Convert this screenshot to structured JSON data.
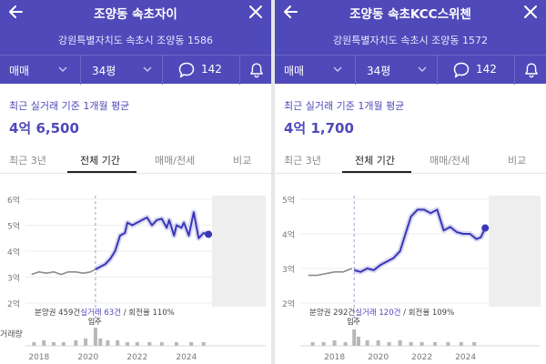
{
  "panels": [
    {
      "title": "조양동 속초자이",
      "address": "강원특별자치도 속초시 조양동 1586",
      "deal_type": "매매",
      "size": "34평",
      "comment_count": "142",
      "avg_label": "최근 실거래 기준 1개월 평균",
      "avg_price": "4억 6,500",
      "tabs": [
        "최근 3년",
        "전체 기간",
        "매매/전세",
        "비교"
      ],
      "active_tab": "전체 기간",
      "info_text": {
        "pre": "분양권 459건",
        "link": "실거래 63건",
        "post": " / 회전율 110%"
      },
      "move_in_label": "입주",
      "volume_label": "거래량",
      "chart_data": {
        "type": "line",
        "y_ticks": [
          "6억",
          "5억",
          "4억",
          "3억",
          "2억"
        ],
        "ylim": [
          2,
          6
        ],
        "x_ticks": [
          "2018",
          "2020",
          "2022",
          "2024"
        ],
        "xlim": [
          2017.6,
          2025.6
        ],
        "move_in_year": 2020.3,
        "series": [
          {
            "role": "pre_sale",
            "color": "#8c8c8c",
            "x": [
              2017.7,
              2018.0,
              2018.3,
              2018.6,
              2018.9,
              2019.2,
              2019.5,
              2019.8,
              2020.1,
              2020.3
            ],
            "y": [
              3.1,
              3.2,
              3.15,
              3.2,
              3.1,
              3.2,
              3.2,
              3.15,
              3.2,
              3.3
            ]
          },
          {
            "role": "transaction",
            "color": "#3a36b8",
            "x": [
              2020.3,
              2020.5,
              2020.7,
              2020.9,
              2021.1,
              2021.3,
              2021.5,
              2021.6,
              2021.8,
              2022.0,
              2022.2,
              2022.4,
              2022.6,
              2022.8,
              2023.0,
              2023.2,
              2023.3,
              2023.5,
              2023.6,
              2023.8,
              2023.9,
              2024.1,
              2024.3,
              2024.5,
              2024.7,
              2024.9
            ],
            "y": [
              3.3,
              3.4,
              3.5,
              3.7,
              4.0,
              4.6,
              4.7,
              5.1,
              5.0,
              5.1,
              5.2,
              5.3,
              5.0,
              5.2,
              5.25,
              4.9,
              5.2,
              4.6,
              5.0,
              4.9,
              5.1,
              4.6,
              5.5,
              4.5,
              4.7,
              4.65
            ]
          }
        ],
        "latest_value": {
          "x": 2024.9,
          "y": 4.65
        },
        "volume_bars": [
          {
            "x": 2017.8,
            "v": 2
          },
          {
            "x": 2018.2,
            "v": 3
          },
          {
            "x": 2018.6,
            "v": 2
          },
          {
            "x": 2019.0,
            "v": 2
          },
          {
            "x": 2019.5,
            "v": 3
          },
          {
            "x": 2019.9,
            "v": 4
          },
          {
            "x": 2020.3,
            "v": 10
          },
          {
            "x": 2020.5,
            "v": 4
          },
          {
            "x": 2020.8,
            "v": 3
          },
          {
            "x": 2021.2,
            "v": 3
          },
          {
            "x": 2021.6,
            "v": 2
          },
          {
            "x": 2022.0,
            "v": 2
          },
          {
            "x": 2022.5,
            "v": 2
          },
          {
            "x": 2023.0,
            "v": 2
          },
          {
            "x": 2023.6,
            "v": 2
          },
          {
            "x": 2024.2,
            "v": 2
          },
          {
            "x": 2024.7,
            "v": 2
          }
        ]
      }
    },
    {
      "title": "조양동 속초KCC스위첸",
      "address": "강원특별자치도 속초시 조양동 1572",
      "deal_type": "매매",
      "size": "34평",
      "comment_count": "142",
      "avg_label": "최근 실거래 기준 1개월 평균",
      "avg_price": "4억 1,700",
      "tabs": [
        "최근 3년",
        "전체 기간",
        "매매/전세",
        "비교"
      ],
      "active_tab": "전체 기간",
      "info_text": {
        "pre": "분양권 292건",
        "link": "실거래 120건",
        "post": " / 회전율 109%"
      },
      "move_in_label": "입주",
      "volume_label": "",
      "chart_data": {
        "type": "line",
        "y_ticks": [
          "5억",
          "4억",
          "3억",
          "2억"
        ],
        "ylim": [
          2,
          5
        ],
        "x_ticks": [
          "2018",
          "2020",
          "2022",
          "2024"
        ],
        "xlim": [
          2016.6,
          2025.6
        ],
        "move_in_year": 2018.9,
        "series": [
          {
            "role": "pre_sale",
            "color": "#8c8c8c",
            "x": [
              2016.8,
              2017.2,
              2017.6,
              2018.0,
              2018.4,
              2018.8
            ],
            "y": [
              2.8,
              2.8,
              2.85,
              2.9,
              2.9,
              3.0
            ]
          },
          {
            "role": "transaction",
            "color": "#3a36b8",
            "x": [
              2018.9,
              2019.2,
              2019.5,
              2019.8,
              2020.1,
              2020.4,
              2020.7,
              2021.0,
              2021.3,
              2021.5,
              2021.8,
              2022.1,
              2022.4,
              2022.7,
              2023.0,
              2023.3,
              2023.6,
              2023.9,
              2024.2,
              2024.5,
              2024.7,
              2024.9
            ],
            "y": [
              2.95,
              2.9,
              3.0,
              2.95,
              3.1,
              3.2,
              3.3,
              3.5,
              4.1,
              4.5,
              4.7,
              4.7,
              4.6,
              4.7,
              4.1,
              4.2,
              4.05,
              4.0,
              4.0,
              3.85,
              3.9,
              4.17
            ]
          }
        ],
        "latest_value": {
          "x": 2024.9,
          "y": 4.17
        },
        "volume_bars": [
          {
            "x": 2017.0,
            "v": 2
          },
          {
            "x": 2017.5,
            "v": 2
          },
          {
            "x": 2018.0,
            "v": 3
          },
          {
            "x": 2018.5,
            "v": 2
          },
          {
            "x": 2018.9,
            "v": 9
          },
          {
            "x": 2019.1,
            "v": 5
          },
          {
            "x": 2019.5,
            "v": 3
          },
          {
            "x": 2020.0,
            "v": 3
          },
          {
            "x": 2020.5,
            "v": 2
          },
          {
            "x": 2021.0,
            "v": 3
          },
          {
            "x": 2021.5,
            "v": 2
          },
          {
            "x": 2022.0,
            "v": 2
          },
          {
            "x": 2022.6,
            "v": 2
          },
          {
            "x": 2023.2,
            "v": 2
          },
          {
            "x": 2023.8,
            "v": 2
          },
          {
            "x": 2024.4,
            "v": 2
          }
        ]
      }
    }
  ],
  "colors": {
    "header": "#4f49b9",
    "accent": "#4f49b9",
    "line": "#3a36b8",
    "pre_sale_line": "#8c8c8c",
    "future_shade": "#eeeeee"
  },
  "icons": {
    "back": "arrow-left-icon",
    "close": "close-icon",
    "dropdown": "chevron-down-icon",
    "comment": "speech-bubble-icon",
    "bell": "bell-icon"
  }
}
